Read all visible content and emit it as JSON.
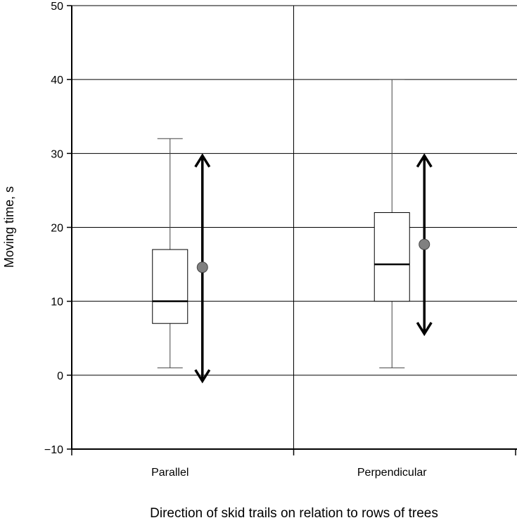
{
  "chart_data": {
    "type": "box",
    "title": "",
    "xlabel": "Direction of skid trails on relation to rows of trees",
    "ylabel": "Moving time, s",
    "ylim": [
      -10,
      50
    ],
    "yticks": [
      -10,
      0,
      10,
      20,
      30,
      40,
      50
    ],
    "grid": true,
    "categories": [
      "Parallel",
      "Perpendicular"
    ],
    "boxes": [
      {
        "name": "Parallel",
        "whisker_low": 1,
        "q1": 7,
        "median": 10,
        "q3": 17,
        "whisker_high": 32,
        "mean": 14.6,
        "range_low": -0.8,
        "range_high": 29.7
      },
      {
        "name": "Perpendicular",
        "whisker_low": 1,
        "q1": 10,
        "median": 15,
        "q3": 22,
        "whisker_high": 40,
        "mean": 17.7,
        "range_low": 5.6,
        "range_high": 29.7
      }
    ],
    "colors": {
      "mean_marker": "#808080",
      "grid": "#000000"
    }
  }
}
